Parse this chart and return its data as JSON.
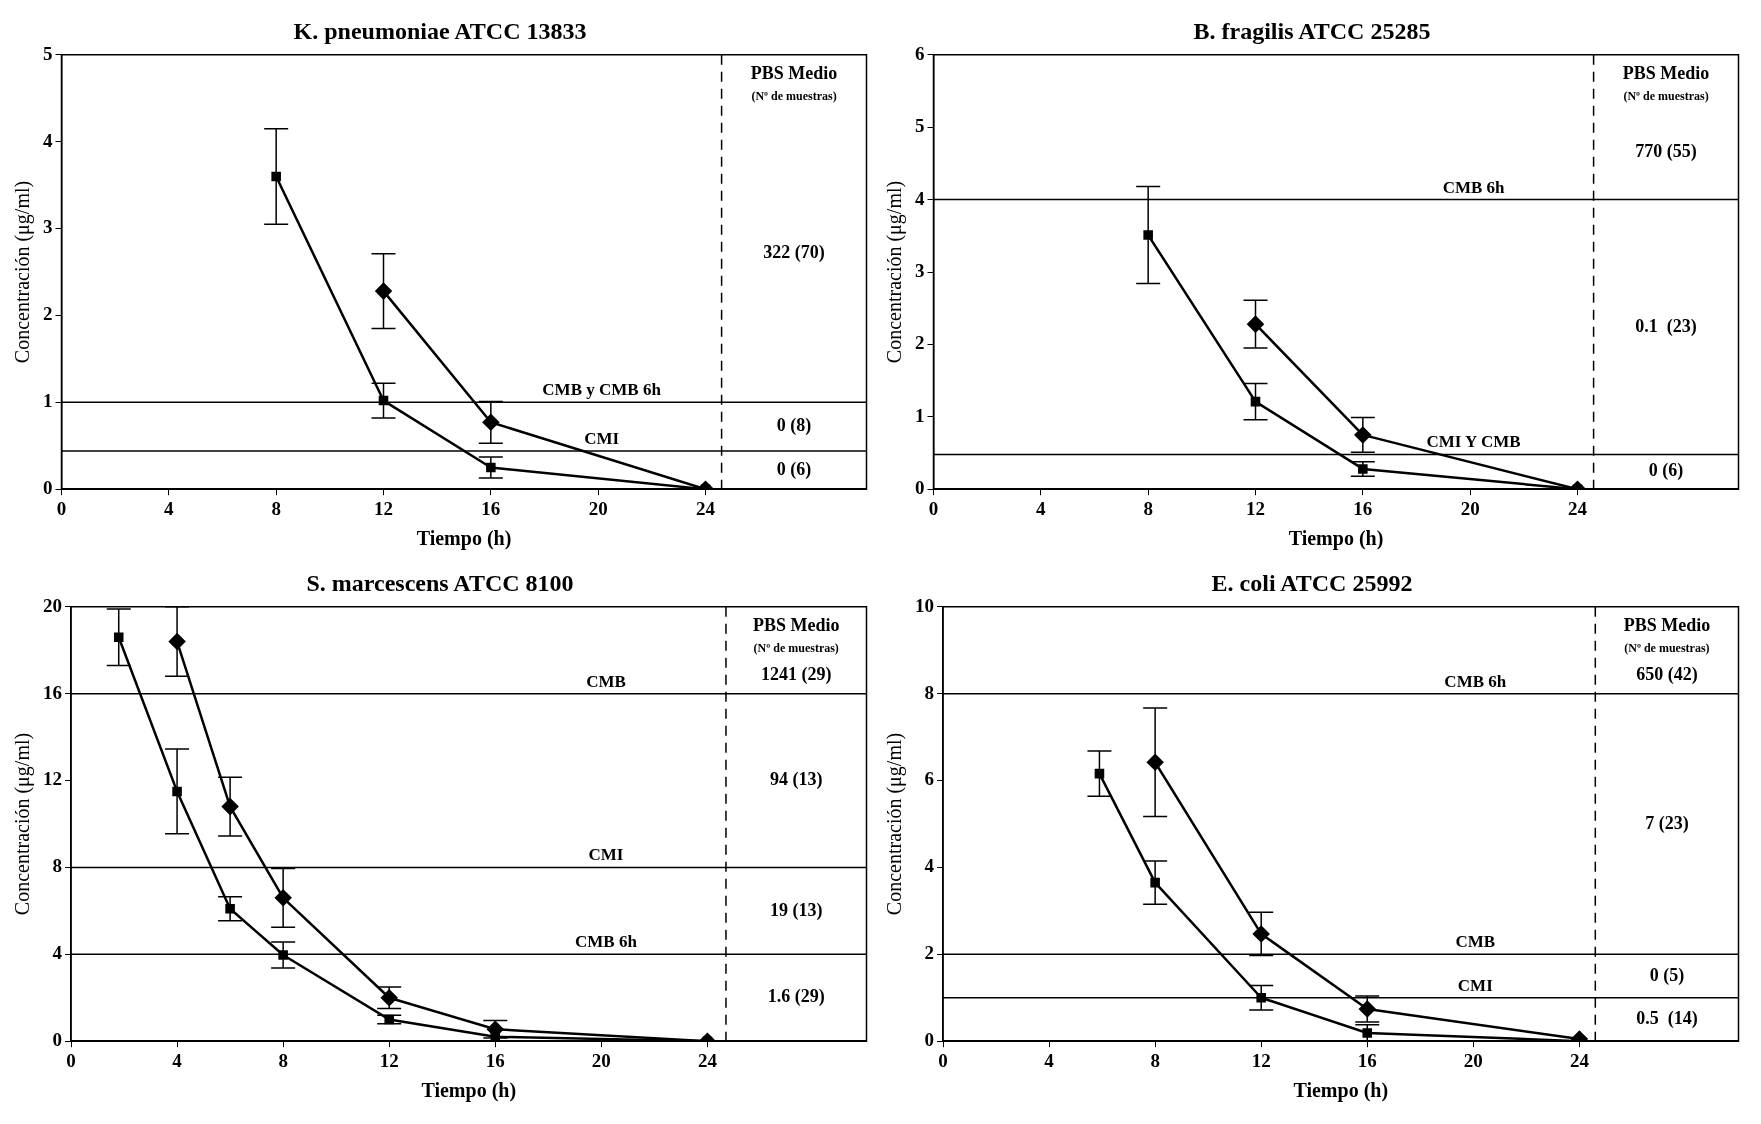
{
  "chart_data": [
    {
      "type": "line",
      "title": "K. pneumoniae ATCC 13833",
      "xlabel": "Tiempo (h)",
      "ylabel": "Concentración (μg/ml)",
      "xlim": [
        0,
        30
      ],
      "xticks": [
        0,
        4,
        8,
        12,
        16,
        20,
        24
      ],
      "ylim": [
        0,
        5
      ],
      "yticks": [
        0,
        1,
        2,
        3,
        4,
        5
      ],
      "grid": false,
      "legend": false,
      "line_style": "solid",
      "series": [
        {
          "color": "#000000",
          "marker": "square",
          "x": [
            8,
            12,
            16,
            24
          ],
          "values": [
            3.6,
            1.02,
            0.25,
            0
          ],
          "errors": [
            0.55,
            0.2,
            0.12,
            null
          ]
        },
        {
          "color": "#000000",
          "marker": "diamond",
          "x": [
            12,
            16,
            24
          ],
          "values": [
            2.28,
            0.77,
            0
          ],
          "errors": [
            0.43,
            0.24,
            null
          ]
        }
      ],
      "ref_lines": [
        {
          "axis": "y",
          "value": 1,
          "label": "CMB y CMB 6h"
        },
        {
          "axis": "y",
          "value": 0.44,
          "label": "CMI"
        },
        {
          "axis": "x",
          "value": 24.6,
          "line_style": "dashed"
        }
      ],
      "annotations": [
        "PBS Medio",
        "(Nº de muestras)",
        "322 (70)",
        "0 (8)",
        "0 (6)"
      ]
    },
    {
      "type": "line",
      "title": "B. fragilis ATCC 25285",
      "xlabel": "Tiempo (h)",
      "ylabel": "Concentración (μg/ml)",
      "xlim": [
        0,
        30
      ],
      "xticks": [
        0,
        4,
        8,
        12,
        16,
        20,
        24
      ],
      "ylim": [
        0,
        6
      ],
      "yticks": [
        0,
        1,
        2,
        3,
        4,
        5,
        6
      ],
      "grid": false,
      "legend": false,
      "line_style": "solid",
      "series": [
        {
          "color": "#000000",
          "marker": "square",
          "x": [
            8,
            12,
            16,
            24
          ],
          "values": [
            3.51,
            1.21,
            0.28,
            0
          ],
          "errors": [
            0.67,
            0.25,
            0.1,
            null
          ]
        },
        {
          "color": "#000000",
          "marker": "diamond",
          "x": [
            12,
            16,
            24
          ],
          "values": [
            2.28,
            0.75,
            0
          ],
          "errors": [
            0.33,
            0.24,
            null
          ]
        }
      ],
      "ref_lines": [
        {
          "axis": "y",
          "value": 4,
          "label": "CMB 6h"
        },
        {
          "axis": "y",
          "value": 0.48,
          "label": "CMI Y CMB"
        },
        {
          "axis": "x",
          "value": 24.6,
          "line_style": "dashed"
        }
      ],
      "annotations": [
        "PBS Medio",
        "(Nº de muestras)",
        "770 (55)",
        "0.1  (23)",
        "0 (6)"
      ]
    },
    {
      "type": "line",
      "title": "S. marcescens ATCC 8100",
      "xlabel": "Tiempo (h)",
      "ylabel": "Concentración (μg/ml)",
      "xlim": [
        0,
        30
      ],
      "xticks": [
        0,
        4,
        8,
        12,
        16,
        20,
        24
      ],
      "ylim": [
        0,
        20
      ],
      "yticks": [
        0,
        4,
        8,
        12,
        16,
        20
      ],
      "grid": false,
      "legend": false,
      "line_style": "solid",
      "series": [
        {
          "color": "#000000",
          "marker": "square",
          "x": [
            1.8,
            4,
            6,
            8,
            12,
            16,
            24
          ],
          "values": [
            18.6,
            11.5,
            6.1,
            3.97,
            1.0,
            0.2,
            0
          ],
          "errors": [
            1.3,
            1.95,
            0.55,
            0.6,
            0.2,
            null,
            null
          ]
        },
        {
          "color": "#000000",
          "marker": "diamond",
          "x": [
            4,
            6,
            8,
            12,
            16,
            24
          ],
          "values": [
            18.4,
            10.8,
            6.6,
            2.0,
            0.55,
            0
          ],
          "errors": [
            1.6,
            1.35,
            1.35,
            0.5,
            0.4,
            null
          ]
        }
      ],
      "ref_lines": [
        {
          "axis": "y",
          "value": 16,
          "label": "CMB"
        },
        {
          "axis": "y",
          "value": 8,
          "label": "CMI"
        },
        {
          "axis": "y",
          "value": 4,
          "label": "CMB 6h"
        },
        {
          "axis": "x",
          "value": 24.7,
          "line_style": "dashed"
        }
      ],
      "annotations": [
        "PBS Medio",
        "(Nº de muestras)",
        "1241 (29)",
        "94 (13)",
        "19 (13)",
        "1.6 (29)"
      ]
    },
    {
      "type": "line",
      "title": "E. coli ATCC 25992",
      "xlabel": "Tiempo (h)",
      "ylabel": "Concentración (μg/ml)",
      "xlim": [
        0,
        30
      ],
      "xticks": [
        0,
        4,
        8,
        12,
        16,
        20,
        24
      ],
      "ylim": [
        0,
        10
      ],
      "yticks": [
        0,
        2,
        4,
        6,
        8,
        10
      ],
      "grid": false,
      "legend": false,
      "line_style": "solid",
      "series": [
        {
          "color": "#000000",
          "marker": "square",
          "x": [
            5.9,
            8,
            12,
            16,
            24
          ],
          "values": [
            6.16,
            3.65,
            1.0,
            0.19,
            0
          ],
          "errors": [
            0.52,
            0.5,
            0.28,
            0.19,
            null
          ]
        },
        {
          "color": "#000000",
          "marker": "diamond",
          "x": [
            8,
            12,
            16,
            24
          ],
          "values": [
            6.42,
            2.47,
            0.74,
            0.05
          ],
          "errors": [
            1.25,
            0.5,
            0.3,
            null
          ]
        }
      ],
      "ref_lines": [
        {
          "axis": "y",
          "value": 8,
          "label": "CMB 6h"
        },
        {
          "axis": "y",
          "value": 2,
          "label": "CMB"
        },
        {
          "axis": "y",
          "value": 1,
          "label": "CMI"
        },
        {
          "axis": "x",
          "value": 24.6,
          "line_style": "dashed"
        }
      ],
      "annotations": [
        "PBS Medio",
        "(Nº de muestras)",
        "650 (42)",
        "7 (23)",
        "0 (5)",
        "0.5  (14)"
      ]
    }
  ]
}
